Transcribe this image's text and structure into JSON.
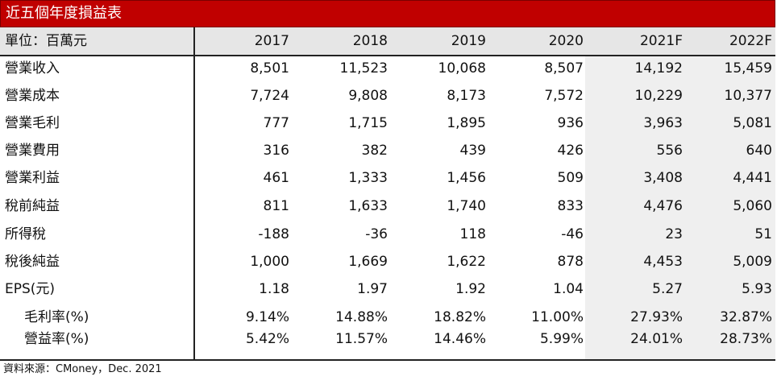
{
  "title": "近五個年度損益表",
  "header": {
    "unit_label": "單位：百萬元",
    "years": [
      "2017",
      "2018",
      "2019",
      "2020",
      "2021F",
      "2022F"
    ]
  },
  "rows": [
    {
      "label": "營業收入",
      "values": [
        "8,501",
        "11,523",
        "10,068",
        "8,507",
        "14,192",
        "15,459"
      ]
    },
    {
      "label": "營業成本",
      "values": [
        "7,724",
        "9,808",
        "8,173",
        "7,572",
        "10,229",
        "10,377"
      ]
    },
    {
      "label": "營業毛利",
      "values": [
        "777",
        "1,715",
        "1,895",
        "936",
        "3,963",
        "5,081"
      ]
    },
    {
      "label": "營業費用",
      "values": [
        "316",
        "382",
        "439",
        "426",
        "556",
        "640"
      ]
    },
    {
      "label": "營業利益",
      "values": [
        "461",
        "1,333",
        "1,456",
        "509",
        "3,408",
        "4,441"
      ]
    },
    {
      "label": "稅前純益",
      "values": [
        "811",
        "1,633",
        "1,740",
        "833",
        "4,476",
        "5,060"
      ]
    },
    {
      "label": "所得稅",
      "values": [
        "-188",
        "-36",
        "118",
        "-46",
        "23",
        "51"
      ]
    },
    {
      "label": "稅後純益",
      "values": [
        "1,000",
        "1,669",
        "1,622",
        "878",
        "4,453",
        "5,009"
      ]
    },
    {
      "label": "EPS(元)",
      "values": [
        "1.18",
        "1.97",
        "1.92",
        "1.04",
        "5.27",
        "5.93"
      ]
    },
    {
      "label": "毛利率(%)",
      "values": [
        "9.14%",
        "14.88%",
        "18.82%",
        "11.00%",
        "27.93%",
        "32.87%"
      ]
    },
    {
      "label": "營益率(%)",
      "values": [
        "5.42%",
        "11.57%",
        "14.46%",
        "5.99%",
        "24.01%",
        "28.73%"
      ]
    }
  ],
  "source": "資料來源：CMoney，Dec. 2021",
  "colors": {
    "title_bg": "#c00000",
    "header_bg": "#e6e6e6",
    "forecast_bg": "#efefef"
  }
}
